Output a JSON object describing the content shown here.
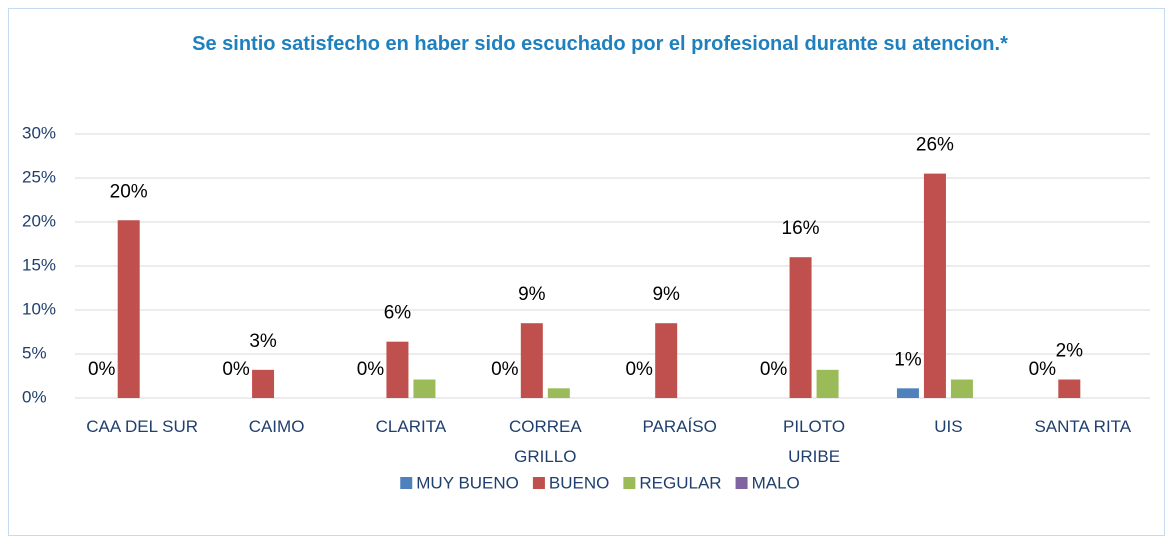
{
  "chart_data": {
    "type": "bar",
    "title": "Se sintio satisfecho en haber sido escuchado por el profesional durante su atencion.*",
    "categories": [
      "CAA DEL SUR",
      "CAIMO",
      "CLARITA",
      "CORREA\nGRILLO",
      "PARAÍSO",
      "PILOTO\nURIBE",
      "UIS",
      "SANTA RITA"
    ],
    "series": [
      {
        "name": "MUY BUENO",
        "color": "#4f81bd",
        "values": [
          0,
          0,
          0,
          0,
          0,
          0,
          1.1,
          0
        ],
        "value_labels": [
          "0%",
          "0%",
          "0%",
          "0%",
          "0%",
          "0%",
          "1%",
          "0%"
        ]
      },
      {
        "name": "BUENO",
        "color": "#c0504d",
        "values": [
          20.2,
          3.2,
          6.4,
          8.5,
          8.5,
          16,
          25.5,
          2.1
        ],
        "value_labels": [
          "20%",
          "3%",
          "6%",
          "9%",
          "9%",
          "16%",
          "26%",
          "2%"
        ]
      },
      {
        "name": "REGULAR",
        "color": "#9bbb59",
        "values": [
          0,
          0,
          2.1,
          1.1,
          0,
          3.2,
          2.1,
          0
        ]
      },
      {
        "name": "MALO",
        "color": "#8064a2",
        "values": [
          0,
          0,
          0,
          0,
          0,
          0,
          0,
          0
        ]
      }
    ],
    "ylim": [
      0,
      30
    ],
    "yticks": [
      {
        "value": 0,
        "label": "0%"
      },
      {
        "value": 5,
        "label": "5%"
      },
      {
        "value": 10,
        "label": "10%"
      },
      {
        "value": 15,
        "label": "15%"
      },
      {
        "value": 20,
        "label": "20%"
      },
      {
        "value": 25,
        "label": "25%"
      },
      {
        "value": 30,
        "label": "30%"
      }
    ],
    "grid": true,
    "legend": "bottom"
  }
}
